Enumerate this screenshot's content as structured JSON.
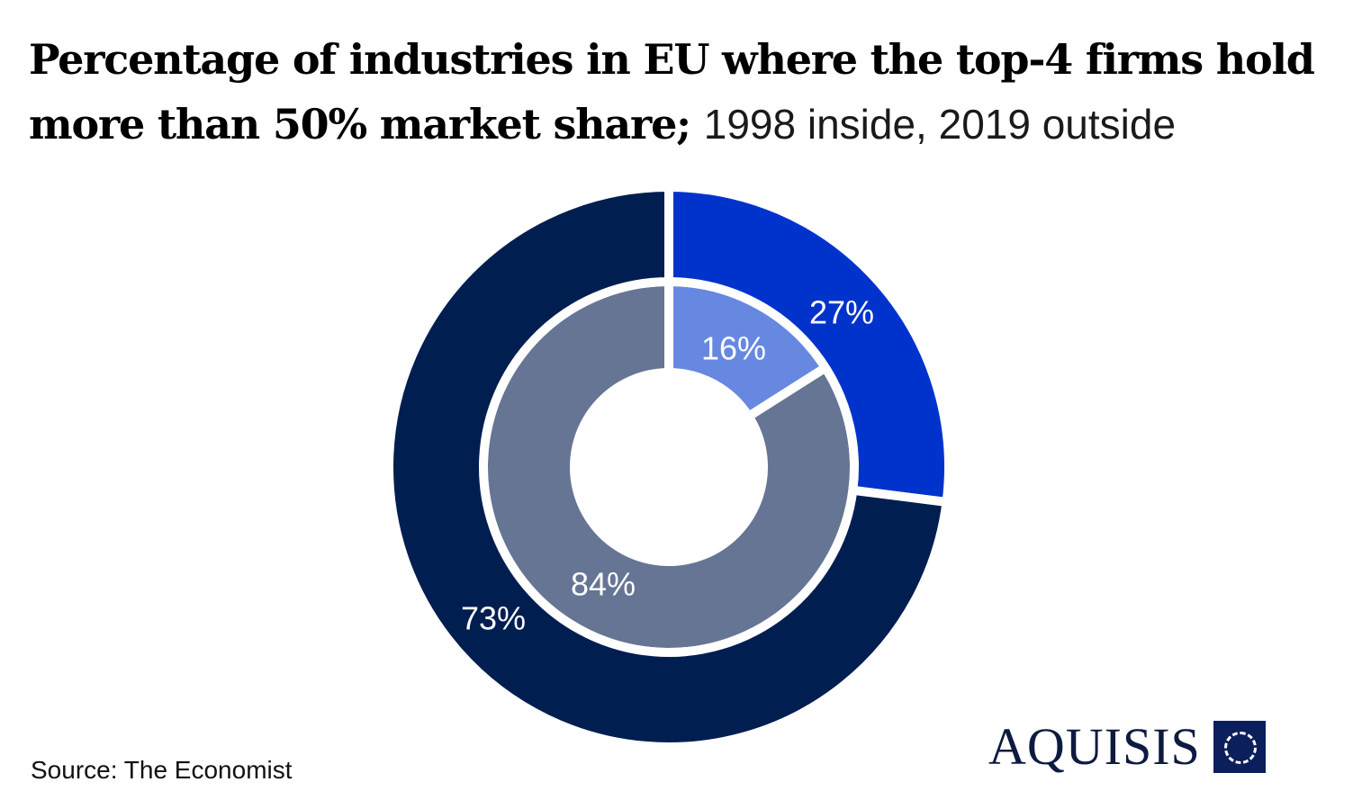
{
  "title": {
    "main": "Percentage of industries in EU where the top-4 firms hold more than 50% market share;",
    "subtitle": "1998 inside, 2019 outside"
  },
  "source": "Source: The Economist",
  "logo": {
    "text": "AQUISIS",
    "icon": "dotted-circle-square-icon"
  },
  "chart_data": {
    "type": "pie",
    "rings": [
      {
        "name": "1998",
        "position": "inside",
        "slices": [
          {
            "label": "16%",
            "value": 16,
            "color": "#6688e0"
          },
          {
            "label": "84%",
            "value": 84,
            "color": "#677594"
          }
        ]
      },
      {
        "name": "2019",
        "position": "outside",
        "slices": [
          {
            "label": "27%",
            "value": 27,
            "color": "#0033cc"
          },
          {
            "label": "73%",
            "value": 73,
            "color": "#011e50"
          }
        ]
      }
    ]
  }
}
